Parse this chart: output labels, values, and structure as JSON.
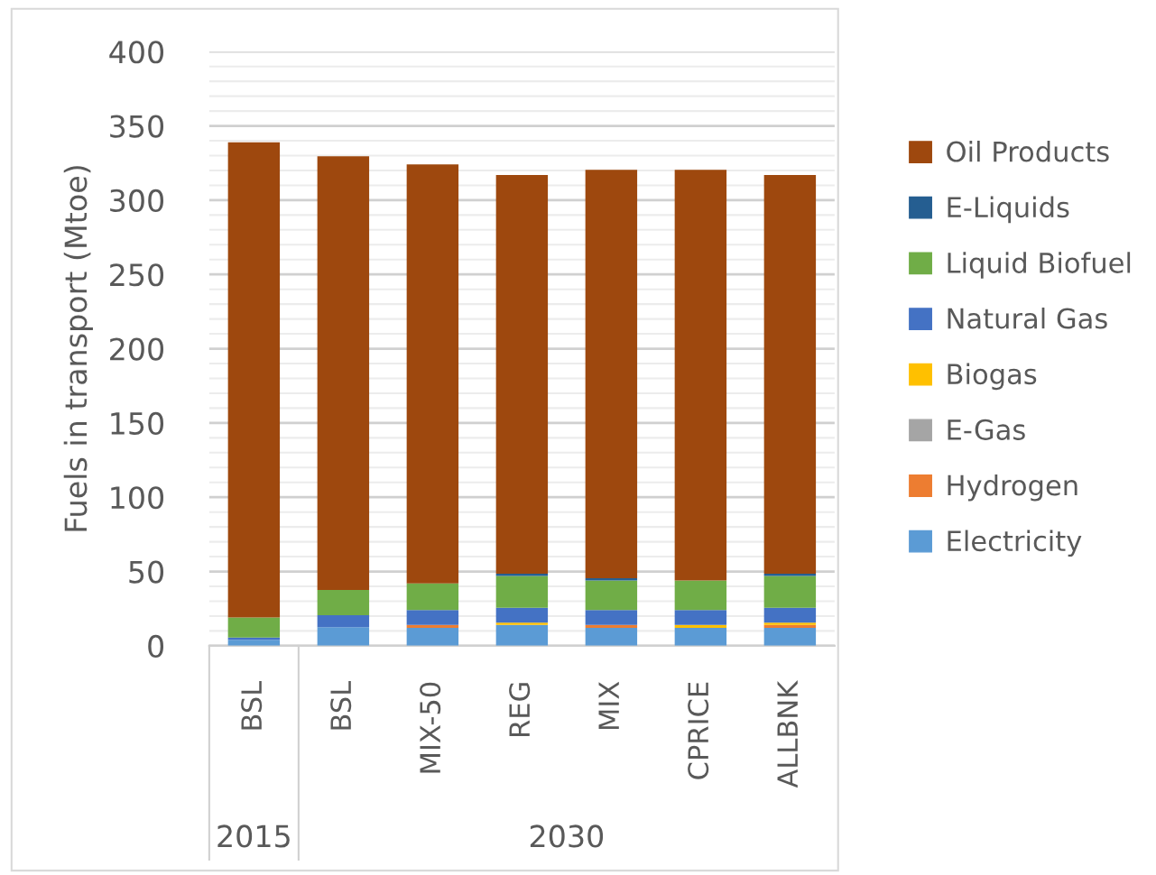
{
  "chart_data": {
    "type": "bar",
    "stacked": true,
    "ylabel": "Fuels in transport (Mtoe)",
    "categories": [
      "BSL",
      "BSL",
      "MIX-50",
      "REG",
      "MIX",
      "CPRICE",
      "ALLBNK"
    ],
    "series": [
      {
        "name": "Electricity",
        "color": "#5b9bd5",
        "values": [
          4,
          12.5,
          12,
          14,
          12,
          12,
          12
        ]
      },
      {
        "name": "Hydrogen",
        "color": "#ed7d31",
        "values": [
          0,
          0,
          2,
          0,
          2,
          0,
          2
        ]
      },
      {
        "name": "E-Gas",
        "color": "#a5a5a5",
        "values": [
          0,
          0,
          0,
          0,
          0,
          0,
          0
        ]
      },
      {
        "name": "Biogas",
        "color": "#ffc000",
        "values": [
          0,
          0,
          0,
          1.5,
          0,
          2,
          1.5
        ]
      },
      {
        "name": "Natural Gas",
        "color": "#4472c4",
        "values": [
          1.5,
          8,
          10,
          10,
          10,
          10,
          10
        ]
      },
      {
        "name": "Liquid Biofuel",
        "color": "#70ad47",
        "values": [
          13.5,
          17,
          18,
          21.5,
          20,
          20,
          21.5
        ]
      },
      {
        "name": "E-Liquids",
        "color": "#255e91",
        "values": [
          0,
          0,
          0,
          1.5,
          1.5,
          0,
          1.5
        ]
      },
      {
        "name": "Oil Products",
        "color": "#9e480e",
        "values": [
          320,
          292,
          282,
          268.5,
          275,
          276.5,
          268.5
        ]
      }
    ],
    "ylim": [
      0,
      400
    ],
    "yticks": [
      0,
      {
        "value": 10,
        "label": null
      },
      {
        "value": 20,
        "label": null
      },
      {
        "value": 30,
        "label": null
      },
      {
        "value": 40,
        "label": null
      },
      50,
      {
        "value": 60,
        "label": null
      },
      {
        "value": 70,
        "label": null
      },
      {
        "value": 80,
        "label": null
      },
      {
        "value": 90,
        "label": null
      },
      100,
      {
        "value": 110,
        "label": null
      },
      {
        "value": 120,
        "label": null
      },
      {
        "value": 130,
        "label": null
      },
      {
        "value": 140,
        "label": null
      },
      150,
      {
        "value": 160,
        "label": null
      },
      {
        "value": 170,
        "label": null
      },
      {
        "value": 180,
        "label": null
      },
      {
        "value": 190,
        "label": null
      },
      200,
      {
        "value": 210,
        "label": null
      },
      {
        "value": 220,
        "label": null
      },
      {
        "value": 230,
        "label": null
      },
      {
        "value": 240,
        "label": null
      },
      250,
      {
        "value": 260,
        "label": null
      },
      {
        "value": 270,
        "label": null
      },
      {
        "value": 280,
        "label": null
      },
      {
        "value": 290,
        "label": null
      },
      300,
      {
        "value": 310,
        "label": null
      },
      {
        "value": 320,
        "label": null
      },
      {
        "value": 330,
        "label": null
      },
      {
        "value": 340,
        "label": null
      },
      350,
      {
        "value": 360,
        "label": null
      },
      {
        "value": 370,
        "label": null
      },
      {
        "value": 380,
        "label": null
      },
      {
        "value": 390,
        "label": null
      },
      400
    ],
    "grid": "y",
    "legend": "right",
    "annotations": [
      "2015",
      "2030"
    ]
  }
}
